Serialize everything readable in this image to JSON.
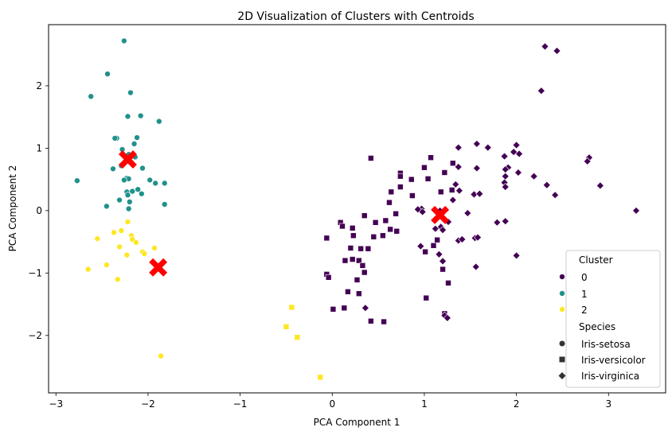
{
  "chart_data": {
    "type": "scatter",
    "title": "2D Visualization of Clusters with Centroids",
    "xlabel": "PCA Component 1",
    "ylabel": "PCA Component 2",
    "xlim": [
      -3.08,
      3.62
    ],
    "ylim": [
      -2.92,
      2.98
    ],
    "xticks": [
      -3,
      -2,
      -1,
      0,
      1,
      2,
      3
    ],
    "yticks": [
      -2,
      -1,
      0,
      1,
      2
    ],
    "grid": false,
    "legend_position": "lower-right",
    "legend": {
      "hue_title": "Cluster",
      "hue_entries": [
        {
          "label": "0",
          "color": "#440154"
        },
        {
          "label": "1",
          "color": "#21918c"
        },
        {
          "label": "2",
          "color": "#fde725"
        }
      ],
      "style_title": "Species",
      "style_entries": [
        {
          "label": "Iris-setosa",
          "marker": "circle"
        },
        {
          "label": "Iris-versicolor",
          "marker": "square"
        },
        {
          "label": "Iris-virginica",
          "marker": "diamond"
        }
      ]
    },
    "colors": {
      "0": "#440154",
      "1": "#21918c",
      "2": "#fde725",
      "centroid": "#ff0000"
    },
    "series": [
      {
        "cluster": "1",
        "species": "Iris-setosa",
        "marker": "circle",
        "points": [
          [
            -2.26,
            2.72
          ],
          [
            -2.44,
            2.19
          ],
          [
            -2.19,
            1.89
          ],
          [
            -2.62,
            1.83
          ],
          [
            -2.22,
            1.51
          ],
          [
            -2.08,
            1.52
          ],
          [
            -1.88,
            1.43
          ],
          [
            -2.34,
            1.16
          ],
          [
            -2.36,
            1.16
          ],
          [
            -2.12,
            1.17
          ],
          [
            -2.15,
            1.07
          ],
          [
            -2.28,
            0.98
          ],
          [
            -2.21,
            0.9
          ],
          [
            -2.14,
            0.86
          ],
          [
            -2.24,
            0.79
          ],
          [
            -2.18,
            0.77
          ],
          [
            -2.29,
            0.72
          ],
          [
            -2.38,
            0.67
          ],
          [
            -2.06,
            0.68
          ],
          [
            -2.23,
            0.52
          ],
          [
            -2.21,
            0.51
          ],
          [
            -2.26,
            0.49
          ],
          [
            -2.77,
            0.48
          ],
          [
            -1.98,
            0.49
          ],
          [
            -1.92,
            0.44
          ],
          [
            -1.82,
            0.44
          ],
          [
            -2.11,
            0.34
          ],
          [
            -2.17,
            0.31
          ],
          [
            -2.23,
            0.3
          ],
          [
            -2.07,
            0.27
          ],
          [
            -2.22,
            0.25
          ],
          [
            -2.31,
            0.17
          ],
          [
            -2.2,
            0.14
          ],
          [
            -1.82,
            0.1
          ],
          [
            -2.45,
            0.07
          ],
          [
            -2.21,
            0.03
          ]
        ]
      },
      {
        "cluster": "2",
        "species": "Iris-setosa",
        "marker": "circle",
        "points": [
          [
            -2.22,
            -0.18
          ],
          [
            -2.29,
            -0.32
          ],
          [
            -2.37,
            -0.35
          ],
          [
            -2.18,
            -0.4
          ],
          [
            -2.55,
            -0.45
          ],
          [
            -2.17,
            -0.46
          ],
          [
            -2.13,
            -0.51
          ],
          [
            -2.31,
            -0.58
          ],
          [
            -2.06,
            -0.66
          ],
          [
            -1.93,
            -0.6
          ],
          [
            -2.04,
            -0.69
          ],
          [
            -2.23,
            -0.71
          ],
          [
            -2.45,
            -0.87
          ],
          [
            -2.65,
            -0.94
          ],
          [
            -2.33,
            -1.1
          ],
          [
            -1.86,
            -2.33
          ]
        ]
      },
      {
        "cluster": "2",
        "species": "Iris-versicolor",
        "marker": "square",
        "points": [
          [
            -0.44,
            -1.55
          ],
          [
            -0.5,
            -1.86
          ],
          [
            -0.38,
            -2.03
          ],
          [
            -0.13,
            -2.67
          ]
        ]
      },
      {
        "cluster": "0",
        "species": "Iris-versicolor",
        "marker": "square",
        "points": [
          [
            0.42,
            0.84
          ],
          [
            1.07,
            0.85
          ],
          [
            1.31,
            0.76
          ],
          [
            1.0,
            0.69
          ],
          [
            0.74,
            0.6
          ],
          [
            0.74,
            0.55
          ],
          [
            1.22,
            0.61
          ],
          [
            0.86,
            0.5
          ],
          [
            1.04,
            0.51
          ],
          [
            0.74,
            0.38
          ],
          [
            0.87,
            0.24
          ],
          [
            0.64,
            0.3
          ],
          [
            1.3,
            0.33
          ],
          [
            1.18,
            0.3
          ],
          [
            0.62,
            0.13
          ],
          [
            0.69,
            -0.05
          ],
          [
            0.35,
            -0.08
          ],
          [
            0.09,
            -0.19
          ],
          [
            0.47,
            -0.19
          ],
          [
            0.58,
            -0.16
          ],
          [
            0.63,
            -0.3
          ],
          [
            0.11,
            -0.25
          ],
          [
            0.22,
            -0.28
          ],
          [
            0.7,
            -0.33
          ],
          [
            0.55,
            -0.4
          ],
          [
            0.23,
            -0.4
          ],
          [
            0.45,
            -0.42
          ],
          [
            -0.06,
            -0.44
          ],
          [
            1.14,
            -0.47
          ],
          [
            1.1,
            -0.56
          ],
          [
            0.2,
            -0.6
          ],
          [
            0.31,
            -0.61
          ],
          [
            0.39,
            -0.61
          ],
          [
            1.01,
            -0.66
          ],
          [
            0.22,
            -0.78
          ],
          [
            0.29,
            -0.8
          ],
          [
            0.14,
            -0.8
          ],
          [
            0.33,
            -0.88
          ],
          [
            1.2,
            -0.94
          ],
          [
            0.35,
            -0.99
          ],
          [
            -0.06,
            -1.02
          ],
          [
            -0.04,
            -1.07
          ],
          [
            0.27,
            -1.11
          ],
          [
            1.26,
            -1.16
          ],
          [
            0.17,
            -1.3
          ],
          [
            0.29,
            -1.33
          ],
          [
            1.02,
            -1.4
          ],
          [
            0.13,
            -1.56
          ],
          [
            0.01,
            -1.58
          ],
          [
            1.22,
            -1.65
          ],
          [
            0.42,
            -1.77
          ],
          [
            0.56,
            -1.78
          ]
        ]
      },
      {
        "cluster": "0",
        "species": "Iris-virginica",
        "marker": "diamond",
        "points": [
          [
            2.31,
            2.63
          ],
          [
            2.44,
            2.56
          ],
          [
            2.27,
            1.92
          ],
          [
            1.57,
            1.07
          ],
          [
            2.0,
            1.05
          ],
          [
            1.37,
            1.01
          ],
          [
            1.69,
            1.01
          ],
          [
            1.97,
            0.94
          ],
          [
            2.03,
            0.91
          ],
          [
            1.87,
            0.87
          ],
          [
            2.79,
            0.85
          ],
          [
            2.77,
            0.79
          ],
          [
            1.91,
            0.69
          ],
          [
            1.37,
            0.7
          ],
          [
            1.57,
            0.68
          ],
          [
            1.88,
            0.66
          ],
          [
            2.02,
            0.61
          ],
          [
            2.19,
            0.55
          ],
          [
            1.88,
            0.55
          ],
          [
            1.87,
            0.45
          ],
          [
            1.34,
            0.42
          ],
          [
            2.33,
            0.41
          ],
          [
            1.88,
            0.38
          ],
          [
            2.91,
            0.4
          ],
          [
            1.38,
            0.32
          ],
          [
            1.54,
            0.26
          ],
          [
            1.6,
            0.27
          ],
          [
            2.42,
            0.25
          ],
          [
            1.31,
            0.17
          ],
          [
            0.97,
            0.03
          ],
          [
            1.17,
            0.0
          ],
          [
            0.93,
            0.02
          ],
          [
            0.98,
            -0.02
          ],
          [
            1.47,
            -0.04
          ],
          [
            1.17,
            -0.08
          ],
          [
            3.3,
            0.0
          ],
          [
            1.26,
            -0.18
          ],
          [
            1.88,
            -0.17
          ],
          [
            1.79,
            -0.19
          ],
          [
            1.18,
            -0.26
          ],
          [
            1.12,
            -0.29
          ],
          [
            1.2,
            -0.31
          ],
          [
            1.37,
            -0.48
          ],
          [
            1.55,
            -0.44
          ],
          [
            1.41,
            -0.46
          ],
          [
            1.58,
            -0.43
          ],
          [
            0.96,
            -0.57
          ],
          [
            1.16,
            -0.7
          ],
          [
            2.0,
            -0.72
          ],
          [
            1.2,
            -0.81
          ],
          [
            1.56,
            -0.9
          ],
          [
            0.36,
            -1.56
          ],
          [
            1.22,
            -1.68
          ],
          [
            1.25,
            -1.72
          ]
        ]
      }
    ],
    "centroids": [
      {
        "cluster": "0",
        "x": 1.17,
        "y": -0.07
      },
      {
        "cluster": "1",
        "x": -2.22,
        "y": 0.82
      },
      {
        "cluster": "2",
        "x": -1.89,
        "y": -0.91
      }
    ]
  }
}
